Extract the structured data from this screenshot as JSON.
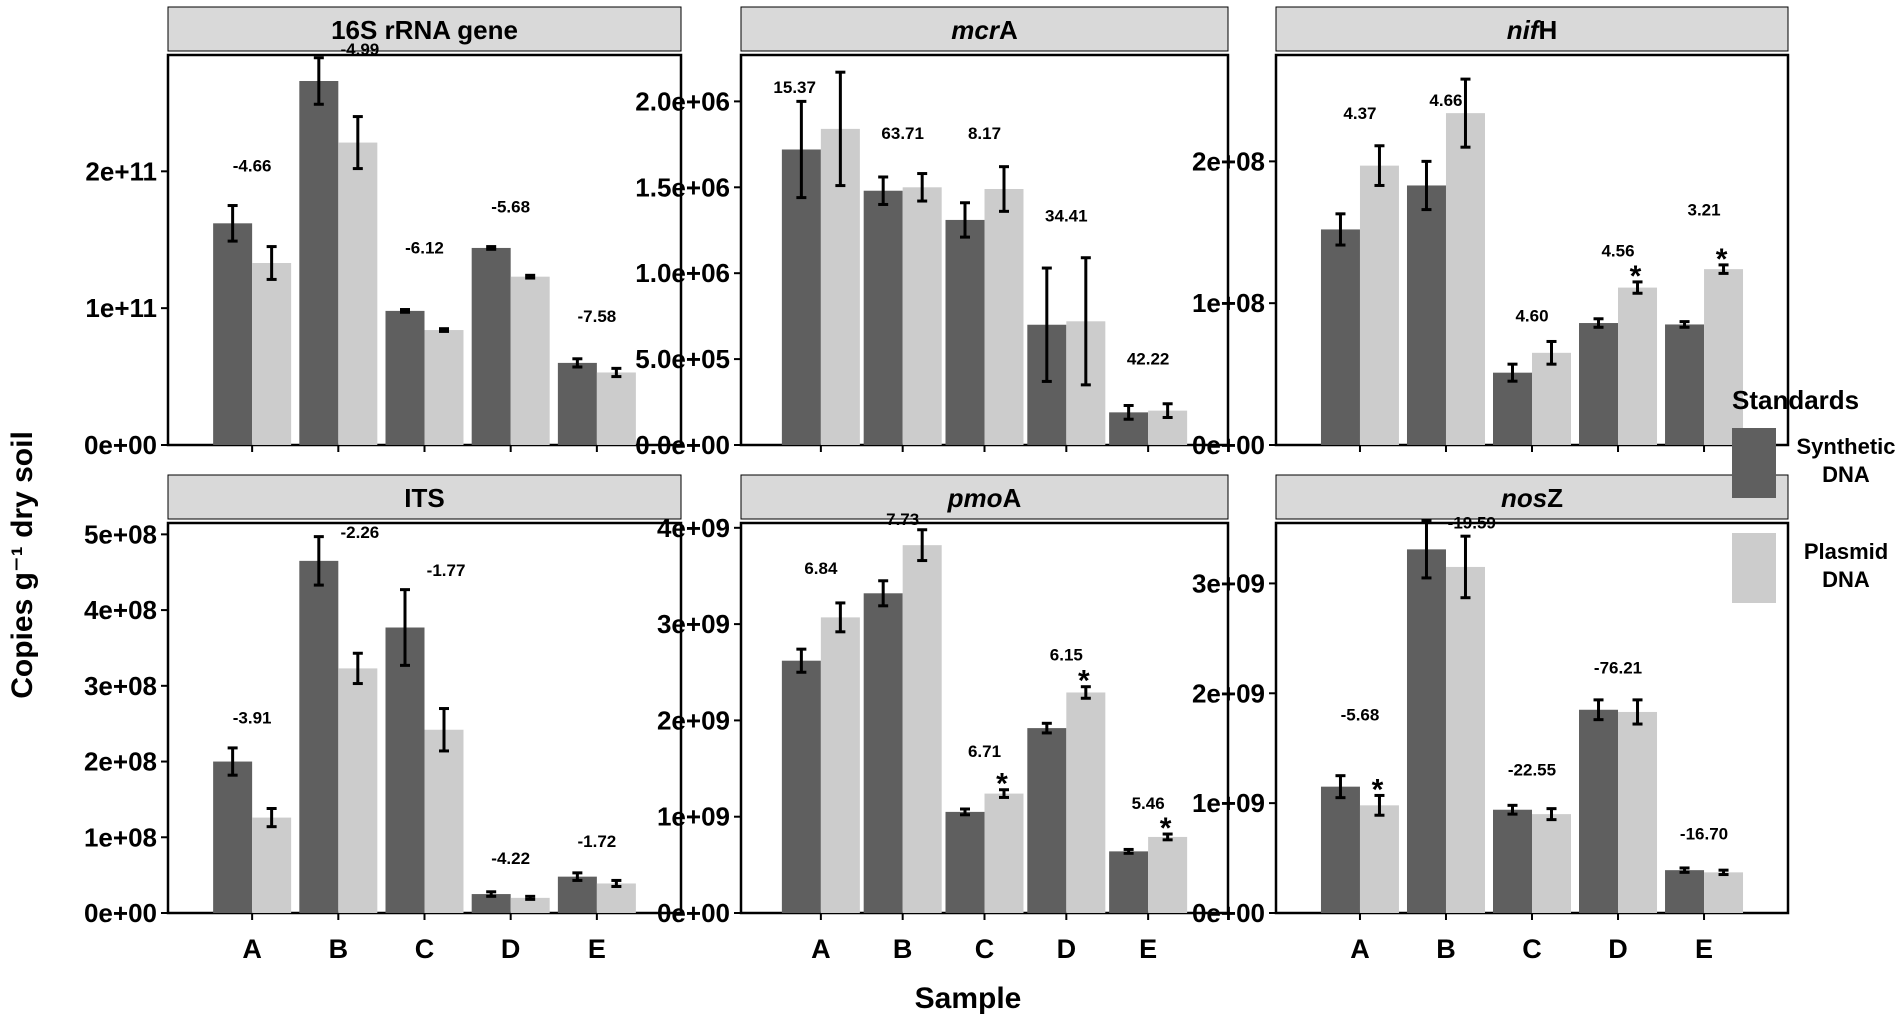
{
  "chart_data": {
    "type": "bar",
    "ylabel": "Copies g⁻¹ dry soil",
    "xlabel": "Sample",
    "categories": [
      "A",
      "B",
      "C",
      "D",
      "E"
    ],
    "legend": {
      "title": "Standards",
      "position": "right",
      "entries": [
        {
          "name": "Synthetic DNA",
          "lines": [
            "Synthetic",
            "DNA"
          ],
          "color": "#5f5f5f"
        },
        {
          "name": "Plasmid DNA",
          "lines": [
            "Plasmid",
            "DNA"
          ],
          "color": "#cccccc"
        }
      ]
    },
    "panels": [
      {
        "title": "16S rRNA gene",
        "title_parts": [
          {
            "text": "16S rRNA gene",
            "italic": false
          }
        ],
        "ylim": [
          0,
          285000000000.0
        ],
        "yticks": [
          0,
          100000000000.0,
          200000000000.0
        ],
        "ytick_labels": [
          "0e+00",
          "1e+11",
          "2e+11"
        ],
        "series": [
          {
            "name": "Synthetic DNA",
            "values": [
              162000000000.0,
              266000000000.0,
              98000000000.0,
              144000000000.0,
              60000000000.0
            ],
            "errors": [
              13000000000.0,
              17000000000.0,
              1000000000.0,
              1000000000.0,
              3000000000.0
            ]
          },
          {
            "name": "Plasmid DNA",
            "values": [
              133000000000.0,
              221000000000.0,
              84000000000.0,
              123000000000.0,
              53000000000.0
            ],
            "errors": [
              12000000000.0,
              19000000000.0,
              1000000000.0,
              1000000000.0,
              3000000000.0
            ]
          }
        ],
        "labels": [
          "-4.66",
          "-4.99",
          "-6.12",
          "-5.68",
          "-7.58"
        ],
        "label_y": [
          200000000000.0,
          285000000000.0,
          140000000000.0,
          170000000000.0,
          90000000000.0
        ],
        "label_offset": [
          0,
          0.25,
          0,
          0,
          0
        ],
        "stars": [
          false,
          false,
          false,
          false,
          false
        ]
      },
      {
        "title": "mcrA",
        "title_parts": [
          {
            "text": "mcr",
            "italic": true
          },
          {
            "text": "A",
            "italic": false
          }
        ],
        "ylim": [
          0,
          2270000.0
        ],
        "yticks": [
          0,
          500000.0,
          1000000.0,
          1500000.0,
          2000000.0
        ],
        "ytick_labels": [
          "0.0e+00",
          "5.0e+05",
          "1.0e+06",
          "1.5e+06",
          "2.0e+06"
        ],
        "series": [
          {
            "name": "Synthetic DNA",
            "values": [
              1720000.0,
              1480000.0,
              1310000.0,
              700000.0,
              190000.0
            ],
            "errors": [
              280000.0,
              80000.0,
              100000.0,
              330000.0,
              40000.0
            ]
          },
          {
            "name": "Plasmid DNA",
            "values": [
              1840000.0,
              1500000.0,
              1490000.0,
              720000.0,
              200000.0
            ],
            "errors": [
              330000.0,
              80000.0,
              130000.0,
              370000.0,
              40000.0
            ]
          }
        ],
        "labels": [
          "15.37",
          "63.71",
          "8.17",
          "34.41",
          "42.22"
        ],
        "label_y": [
          2050000.0,
          1780000.0,
          1780000.0,
          1300000.0,
          470000.0
        ],
        "label_offset": [
          -0.32,
          0,
          0,
          0,
          0
        ],
        "stars": [
          false,
          false,
          false,
          false,
          false
        ]
      },
      {
        "title": "nifH",
        "title_parts": [
          {
            "text": "nif",
            "italic": true
          },
          {
            "text": "H",
            "italic": false
          }
        ],
        "ylim": [
          0,
          275000000.0
        ],
        "yticks": [
          0,
          100000000.0,
          200000000.0
        ],
        "ytick_labels": [
          "0e+00",
          "1e+08",
          "2e+08"
        ],
        "series": [
          {
            "name": "Synthetic DNA",
            "values": [
              152000000.0,
              183000000.0,
              51000000.0,
              86000000.0,
              85000000.0
            ],
            "errors": [
              11000000.0,
              17000000.0,
              6000000.0,
              3000000.0,
              2000000.0
            ]
          },
          {
            "name": "Plasmid DNA",
            "values": [
              197000000.0,
              234000000.0,
              65000000.0,
              111000000.0,
              124000000.0
            ],
            "errors": [
              14000000.0,
              24000000.0,
              8000000.0,
              4000000.0,
              3000000.0
            ]
          }
        ],
        "labels": [
          "4.37",
          "4.66",
          "4.60",
          "4.56",
          "3.21"
        ],
        "label_y": [
          230000000.0,
          239000000.0,
          87000000.0,
          133000000.0,
          162000000.0
        ],
        "label_offset": [
          0,
          0,
          0,
          0,
          0
        ],
        "stars": [
          false,
          false,
          false,
          true,
          true
        ]
      },
      {
        "title": "ITS",
        "title_parts": [
          {
            "text": "ITS",
            "italic": false
          }
        ],
        "ylim": [
          0,
          515000000.0
        ],
        "yticks": [
          0,
          100000000.0,
          200000000.0,
          300000000.0,
          400000000.0,
          500000000.0
        ],
        "ytick_labels": [
          "0e+00",
          "1e+08",
          "2e+08",
          "3e+08",
          "4e+08",
          "5e+08"
        ],
        "series": [
          {
            "name": "Synthetic DNA",
            "values": [
              200000000.0,
              465000000.0,
              377000000.0,
              25000000.0,
              48000000.0
            ],
            "errors": [
              18000000.0,
              32000000.0,
              50000000.0,
              3000000.0,
              5000000.0
            ]
          },
          {
            "name": "Plasmid DNA",
            "values": [
              126000000.0,
              323000000.0,
              242000000.0,
              20000000.0,
              39000000.0
            ],
            "errors": [
              12000000.0,
              20000000.0,
              28000000.0,
              2000000.0,
              4000000.0
            ]
          }
        ],
        "labels": [
          "-3.91",
          "-2.26",
          "-1.77",
          "-4.22",
          "-1.72"
        ],
        "label_y": [
          250000000.0,
          495000000.0,
          445000000.0,
          65000000.0,
          87000000.0
        ],
        "label_offset": [
          0,
          0.25,
          0.25,
          0,
          0
        ],
        "stars": [
          false,
          false,
          false,
          false,
          false
        ]
      },
      {
        "title": "pmoA",
        "title_parts": [
          {
            "text": "pmo",
            "italic": true
          },
          {
            "text": "A",
            "italic": false
          }
        ],
        "ylim": [
          0,
          4050000000.0
        ],
        "yticks": [
          0,
          1000000000.0,
          2000000000.0,
          3000000000.0,
          4000000000.0
        ],
        "ytick_labels": [
          "0e+00",
          "1e+09",
          "2e+09",
          "3e+09",
          "4e+09"
        ],
        "series": [
          {
            "name": "Synthetic DNA",
            "values": [
              2620000000.0,
              3320000000.0,
              1050000000.0,
              1920000000.0,
              640000000.0
            ],
            "errors": [
              120000000.0,
              130000000.0,
              30000000.0,
              50000000.0,
              20000000.0
            ]
          },
          {
            "name": "Plasmid DNA",
            "values": [
              3070000000.0,
              3820000000.0,
              1240000000.0,
              2290000000.0,
              790000000.0
            ],
            "errors": [
              150000000.0,
              160000000.0,
              40000000.0,
              60000000.0,
              30000000.0
            ]
          }
        ],
        "labels": [
          "6.84",
          "7.73",
          "6.71",
          "6.15",
          "5.46"
        ],
        "label_y": [
          3520000000.0,
          4030000000.0,
          1620000000.0,
          2620000000.0,
          1080000000.0
        ],
        "label_offset": [
          0,
          0,
          0,
          0,
          0
        ],
        "stars": [
          false,
          false,
          true,
          true,
          true
        ]
      },
      {
        "title": "nosZ",
        "title_parts": [
          {
            "text": "nos",
            "italic": true
          },
          {
            "text": "Z",
            "italic": false
          }
        ],
        "ylim": [
          0,
          3550000000.0
        ],
        "yticks": [
          0,
          1000000000.0,
          2000000000.0,
          3000000000.0
        ],
        "ytick_labels": [
          "0e+00",
          "1e+09",
          "2e+09",
          "3e+09"
        ],
        "series": [
          {
            "name": "Synthetic DNA",
            "values": [
              1150000000.0,
              3310000000.0,
              940000000.0,
              1850000000.0,
              390000000.0
            ],
            "errors": [
              100000000.0,
              260000000.0,
              40000000.0,
              90000000.0,
              20000000.0
            ]
          },
          {
            "name": "Plasmid DNA",
            "values": [
              980000000.0,
              3150000000.0,
              900000000.0,
              1830000000.0,
              370000000.0
            ],
            "errors": [
              90000000.0,
              280000000.0,
              50000000.0,
              110000000.0,
              20000000.0
            ]
          }
        ],
        "labels": [
          "-5.68",
          "-19.59",
          "-22.55",
          "-76.21",
          "-16.70"
        ],
        "label_y": [
          1750000000.0,
          3500000000.0,
          1250000000.0,
          2180000000.0,
          670000000.0
        ],
        "label_offset": [
          0,
          0.3,
          0,
          0,
          0
        ],
        "stars": [
          true,
          false,
          false,
          false,
          false
        ]
      }
    ]
  }
}
